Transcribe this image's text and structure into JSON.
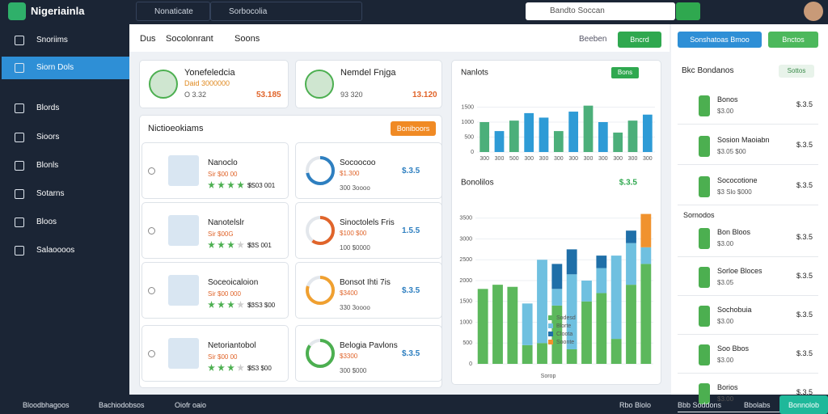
{
  "brand": "Nigeriainla",
  "topbar": {
    "tabs": [
      "Nonaticate",
      "Sorbocolia"
    ],
    "search": "Bandto Soccan"
  },
  "sidebar": {
    "items": [
      "Snoriims",
      "Siorn Dols",
      "Blords",
      "Sioors",
      "Blonls",
      "Sotarns",
      "Bloos",
      "Salaoooos"
    ],
    "active": 1
  },
  "main": {
    "tabs": [
      "Dus",
      "Socolonrant",
      "Soons"
    ],
    "button": "Beeben",
    "button2": "Bncrd"
  },
  "profiles": [
    {
      "name": "Yonefeledcia",
      "sub": "Daid 3000000",
      "meta": "O 3.32",
      "value": "53.185"
    },
    {
      "name": "Nemdel Fnjga",
      "meta": "93 320",
      "value": "13.120"
    }
  ],
  "section": {
    "title": "Nictioeokiams",
    "button": "Boniboors"
  },
  "products": [
    {
      "name": "Nanoclo",
      "price": "Sir $00 00",
      "rating": 4,
      "meta": "$S03 001"
    },
    {
      "name": "Nanotelslr",
      "price": "Sir $00G",
      "rating": 3,
      "meta": "$3S 001"
    },
    {
      "name": "Soceoicaloion",
      "price": "Sir $00 000",
      "rating": 3,
      "meta": "$3S3 $00"
    },
    {
      "name": "Netoriantobol",
      "price": "Sir $00 00",
      "rating": 3,
      "meta": "$S3 $00"
    }
  ],
  "gauges": [
    {
      "name": "Socoocoo",
      "price": "$1.300",
      "meta": "300 3oooo",
      "score": "$.3.5",
      "percent": 72,
      "color": "#2e7fc0"
    },
    {
      "name": "Sinoctolels Fris",
      "price": "$100 $00",
      "meta": "100 $0000",
      "score": "1.5.5",
      "percent": 60,
      "color": "#e0642a"
    },
    {
      "name": "Bonsot Ihti 7is",
      "price": "$3400",
      "meta": "330 3oooo",
      "score": "$.3.5",
      "percent": 80,
      "color": "#f0a030"
    },
    {
      "name": "Belogia Pavlons",
      "price": "$3300",
      "meta": "300 $000",
      "score": "$.3.5",
      "percent": 85,
      "color": "#4caf50"
    }
  ],
  "charts": [
    {
      "title": "Nanlots",
      "button": "Bons",
      "ylim": [
        0,
        2000
      ],
      "yticks": [
        0,
        500,
        1000,
        1500
      ],
      "categories": [
        "300",
        "300",
        "500",
        "300",
        "300",
        "300",
        "300",
        "300",
        "300",
        "300",
        "300",
        "300"
      ],
      "values": [
        1000,
        700,
        1050,
        1300,
        1150,
        700,
        1350,
        1550,
        1000,
        650,
        1050,
        1250
      ],
      "colors": [
        "#4caf7a",
        "#2e9bd6",
        "#4caf7a",
        "#2e9bd6",
        "#2e9bd6",
        "#4caf7a",
        "#2e9bd6",
        "#4caf7a",
        "#2e9bd6",
        "#4caf7a",
        "#4caf7a",
        "#2e9bd6"
      ]
    },
    {
      "title": "Bonolilos",
      "value": "$.3.5",
      "xlabel": "Sorop",
      "ylim": [
        0,
        4000
      ],
      "yticks": [
        0,
        500,
        1000,
        1500,
        2000,
        2500,
        3000,
        3500
      ],
      "categories": [
        "1",
        "2",
        "3",
        "4",
        "5",
        "6",
        "7",
        "8",
        "9",
        "10",
        "11",
        "12"
      ],
      "series": [
        {
          "name": "Sodesd",
          "color": "#5cb85c",
          "values": [
            1800,
            1900,
            1850,
            450,
            500,
            1400,
            350,
            1500,
            1700,
            600,
            1900,
            2400
          ]
        },
        {
          "name": "Blorte",
          "color": "#6fc0e0",
          "values": [
            0,
            0,
            0,
            1000,
            2000,
            400,
            1800,
            500,
            600,
            2000,
            1000,
            400
          ]
        },
        {
          "name": "Cloota",
          "color": "#1f6fa8",
          "values": [
            0,
            0,
            0,
            0,
            0,
            600,
            600,
            0,
            300,
            0,
            300,
            0
          ]
        },
        {
          "name": "Soonte",
          "color": "#f0922e",
          "values": [
            0,
            0,
            0,
            0,
            0,
            0,
            0,
            0,
            0,
            0,
            0,
            800
          ]
        }
      ]
    }
  ],
  "right": {
    "buttons": [
      "Sonshatoas Bmoo",
      "Bnctos"
    ],
    "title": "Bkc Bondanos",
    "button": "Sottos",
    "list1": [
      {
        "name": "Bonos",
        "sub": "$3.00",
        "value": "$.3.5"
      },
      {
        "name": "Sosion Maoiabn",
        "sub": "$3.05 $00",
        "value": "$.3.5"
      },
      {
        "name": "Sococotione",
        "sub": "$3 Slo $000",
        "value": "$.3.5"
      }
    ],
    "section": "Sornodos",
    "list2": [
      {
        "name": "Bon Bloos",
        "sub": "$3.00",
        "value": "$.3.5"
      },
      {
        "name": "Sorloe Bloces",
        "sub": "$3.05",
        "value": "$.3.5"
      },
      {
        "name": "Sochobuia",
        "sub": "$3.00",
        "value": "$.3.5"
      },
      {
        "name": "Soo Bbos",
        "sub": "$3.00",
        "value": "$.3.5"
      },
      {
        "name": "Borios",
        "sub": "$3.00",
        "value": "$.3.5"
      }
    ]
  },
  "footer": {
    "left": [
      "Bloodbhagoos",
      "Bachiodobsos",
      "Oiofr oaio"
    ],
    "right": [
      "Rbo Blolo",
      "Bbb Soddons",
      "Bbolabs"
    ],
    "button": "Bonnolob"
  }
}
